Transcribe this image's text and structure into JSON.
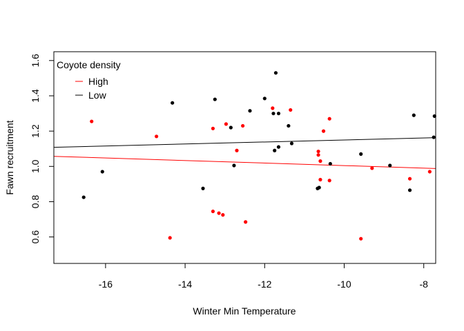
{
  "chart_data": {
    "type": "scatter",
    "xlabel": "Winter Min Temperature",
    "ylabel": "Fawn recruitment",
    "xlim": [
      -17.3,
      -7.7
    ],
    "ylim": [
      0.45,
      1.65
    ],
    "x_ticks": [
      "-16",
      "-14",
      "-12",
      "-10",
      "-8"
    ],
    "x_tick_values": [
      -16,
      -14,
      -12,
      -10,
      -8
    ],
    "y_ticks": [
      "0.6",
      "0.8",
      "1.0",
      "1.2",
      "1.4",
      "1.6"
    ],
    "y_tick_values": [
      0.6,
      0.8,
      1.0,
      1.2,
      1.4,
      1.6
    ],
    "grid": false,
    "legend": {
      "title": "Coyote density",
      "position": "top-left",
      "entries": [
        "High",
        "Low"
      ]
    },
    "series": [
      {
        "name": "High",
        "color": "#ff0000",
        "x": [
          -16.35,
          -14.72,
          -14.38,
          -13.3,
          -13.3,
          -13.15,
          -13.05,
          -12.97,
          -12.7,
          -12.55,
          -12.48,
          -11.8,
          -11.35,
          -10.65,
          -10.65,
          -10.6,
          -10.6,
          -10.52,
          -10.37,
          -10.37,
          -9.58,
          -9.3,
          -8.35,
          -7.85
        ],
        "y": [
          1.255,
          1.17,
          0.595,
          1.215,
          0.745,
          0.735,
          0.725,
          1.24,
          1.09,
          1.23,
          0.685,
          1.33,
          1.32,
          1.065,
          1.085,
          1.03,
          0.925,
          1.2,
          1.27,
          0.92,
          0.59,
          0.99,
          0.93,
          0.97
        ]
      },
      {
        "name": "Low",
        "color": "#000000",
        "x": [
          -16.55,
          -16.08,
          -14.32,
          -13.55,
          -13.25,
          -12.85,
          -12.77,
          -12.37,
          -12.0,
          -11.78,
          -11.75,
          -11.72,
          -11.65,
          -11.65,
          -11.4,
          -11.32,
          -10.67,
          -10.63,
          -10.35,
          -9.58,
          -8.85,
          -8.35,
          -8.25,
          -7.75,
          -7.73
        ],
        "y": [
          0.825,
          0.97,
          1.36,
          0.875,
          1.38,
          1.22,
          1.005,
          1.315,
          1.385,
          1.3,
          1.09,
          1.53,
          1.11,
          1.3,
          1.23,
          1.13,
          0.875,
          0.88,
          1.015,
          1.07,
          1.005,
          0.865,
          1.29,
          1.165,
          1.285
        ]
      }
    ],
    "trend_lines": [
      {
        "series": "High",
        "color": "#ff0000",
        "x": [
          -17.3,
          -7.7
        ],
        "y": [
          1.057,
          0.988
        ]
      },
      {
        "series": "Low",
        "color": "#000000",
        "x": [
          -17.3,
          -7.7
        ],
        "y": [
          1.108,
          1.163
        ]
      }
    ]
  }
}
